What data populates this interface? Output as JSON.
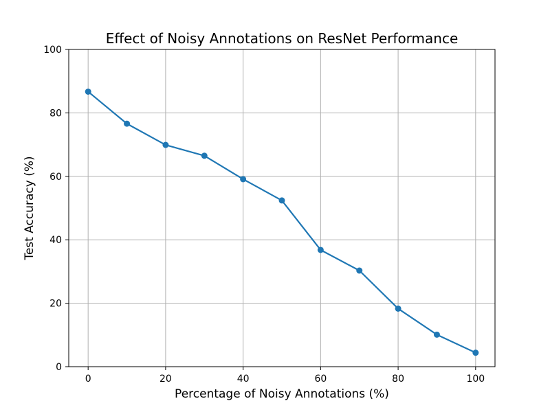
{
  "chart_data": {
    "type": "line",
    "title": "Effect of Noisy Annotations on ResNet Performance",
    "xlabel": "Percentage of Noisy Annotations (%)",
    "ylabel": "Test Accuracy (%)",
    "xlim": [
      -5,
      105
    ],
    "ylim": [
      0,
      100
    ],
    "xticks": [
      0,
      20,
      40,
      60,
      80,
      100
    ],
    "yticks": [
      0,
      20,
      40,
      60,
      80,
      100
    ],
    "grid": true,
    "legend": "none",
    "series": [
      {
        "color": "#1f77b4",
        "marker": "circle",
        "x": [
          0,
          10,
          20,
          30,
          40,
          50,
          60,
          70,
          80,
          90,
          100
        ],
        "y": [
          86.7,
          76.6,
          69.9,
          66.5,
          59.1,
          52.4,
          36.8,
          30.3,
          18.3,
          10.1,
          4.4
        ]
      }
    ]
  }
}
